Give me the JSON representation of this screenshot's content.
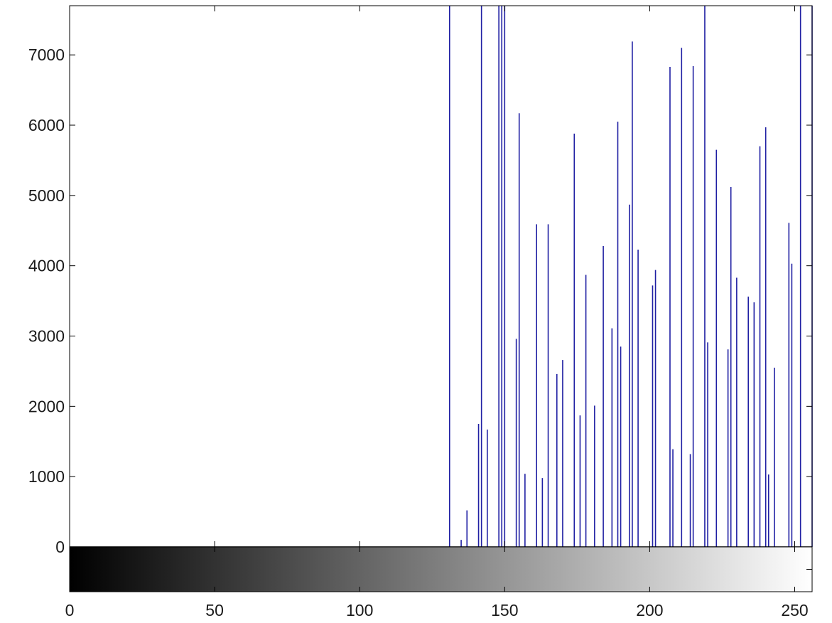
{
  "chart_data": {
    "type": "bar",
    "style": "stem-histogram",
    "series_color": "#1f1fa3",
    "colorbar": "grayscale",
    "grid": false,
    "xlim": [
      0,
      256
    ],
    "ylim": [
      0,
      7700
    ],
    "x_ticks": [
      0,
      50,
      100,
      150,
      200,
      250
    ],
    "y_ticks": [
      0,
      1000,
      2000,
      3000,
      4000,
      5000,
      6000,
      7000
    ],
    "x_tick_labels": [
      "0",
      "50",
      "100",
      "150",
      "200",
      "250"
    ],
    "y_tick_labels": [
      "0",
      "1000",
      "2000",
      "3000",
      "4000",
      "5000",
      "6000",
      "7000"
    ],
    "x": [
      131,
      135,
      137,
      141,
      142,
      144,
      148,
      149,
      150,
      154,
      155,
      157,
      161,
      163,
      165,
      168,
      170,
      174,
      176,
      178,
      181,
      184,
      187,
      189,
      190,
      193,
      194,
      196,
      201,
      202,
      207,
      208,
      211,
      214,
      215,
      219,
      220,
      223,
      227,
      228,
      230,
      234,
      236,
      238,
      240,
      241,
      243,
      248,
      249,
      252,
      256
    ],
    "values": [
      7700,
      100,
      520,
      1750,
      7700,
      1670,
      7700,
      7700,
      7700,
      2960,
      6170,
      1040,
      4590,
      980,
      4590,
      2460,
      2660,
      5880,
      1870,
      3870,
      2010,
      4280,
      3110,
      6050,
      2850,
      4870,
      7190,
      4230,
      3720,
      3940,
      6830,
      1390,
      7100,
      1320,
      6840,
      7700,
      2910,
      5650,
      2810,
      5120,
      3830,
      3560,
      3480,
      5700,
      5970,
      1030,
      2550,
      4610,
      4030,
      7700,
      7700
    ]
  }
}
